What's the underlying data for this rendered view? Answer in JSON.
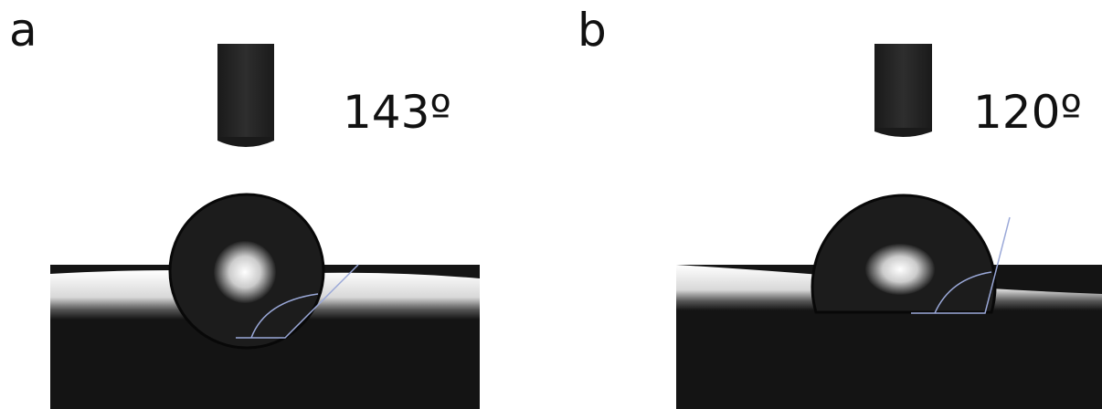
{
  "panels": [
    {
      "label": "a",
      "angle": "143º"
    },
    {
      "label": "b",
      "angle": "120º"
    }
  ]
}
